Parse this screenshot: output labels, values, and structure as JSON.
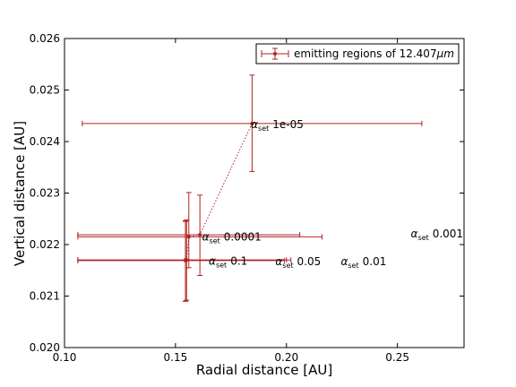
{
  "chart_data": {
    "type": "scatter",
    "xlabel": "Radial distance [AU]",
    "ylabel": "Vertical distance [AU]",
    "xlim": [
      0.1,
      0.28
    ],
    "ylim": [
      0.02,
      0.026
    ],
    "xticks": [
      0.1,
      0.15,
      0.2,
      0.25
    ],
    "xtick_labels": [
      "0.10",
      "0.15",
      "0.20",
      "0.25"
    ],
    "yticks": [
      0.02,
      0.021,
      0.022,
      0.023,
      0.024,
      0.025,
      0.026
    ],
    "ytick_labels": [
      "0.020",
      "0.021",
      "0.022",
      "0.023",
      "0.024",
      "0.025",
      "0.026"
    ],
    "grid": false,
    "legend": {
      "position": "top-right",
      "label_prefix": "emitting regions of 12.407",
      "label_unit": "μm"
    },
    "colors": {
      "series": "#b22222",
      "axes": "#000000"
    },
    "series": [
      {
        "points": [
          {
            "x": 0.1845,
            "y": 0.02435,
            "xmin": 0.108,
            "xmax": 0.261,
            "ymin": 0.02342,
            "ymax": 0.02529
          },
          {
            "x": 0.161,
            "y": 0.02219,
            "xmin": 0.106,
            "xmax": 0.206,
            "ymin": 0.0214,
            "ymax": 0.02296
          },
          {
            "x": 0.156,
            "y": 0.02215,
            "xmin": 0.106,
            "xmax": 0.216,
            "ymin": 0.02155,
            "ymax": 0.02301
          },
          {
            "x": 0.155,
            "y": 0.0217,
            "xmin": 0.106,
            "xmax": 0.202,
            "ymin": 0.02092,
            "ymax": 0.02248
          },
          {
            "x": 0.1545,
            "y": 0.0217,
            "xmin": 0.106,
            "xmax": 0.2,
            "ymin": 0.0209,
            "ymax": 0.02245
          },
          {
            "x": 0.1545,
            "y": 0.02169,
            "xmin": 0.106,
            "xmax": 0.199,
            "ymin": 0.0209,
            "ymax": 0.02246
          }
        ]
      }
    ],
    "annotations": [
      {
        "symbol": "α",
        "sub": "set",
        "value": "1e-05",
        "x": 0.184,
        "y": 0.02433
      },
      {
        "symbol": "α",
        "sub": "set",
        "value": "0.0001",
        "x": 0.162,
        "y": 0.02215
      },
      {
        "symbol": "α",
        "sub": "set",
        "value": "0.001",
        "x": 0.256,
        "y": 0.02221
      },
      {
        "symbol": "α",
        "sub": "set",
        "value": "0.01",
        "x": 0.2245,
        "y": 0.02167
      },
      {
        "symbol": "α",
        "sub": "set",
        "value": "0.05",
        "x": 0.195,
        "y": 0.02167
      },
      {
        "symbol": "α",
        "sub": "set",
        "value": "0.1",
        "x": 0.165,
        "y": 0.02168
      }
    ]
  }
}
